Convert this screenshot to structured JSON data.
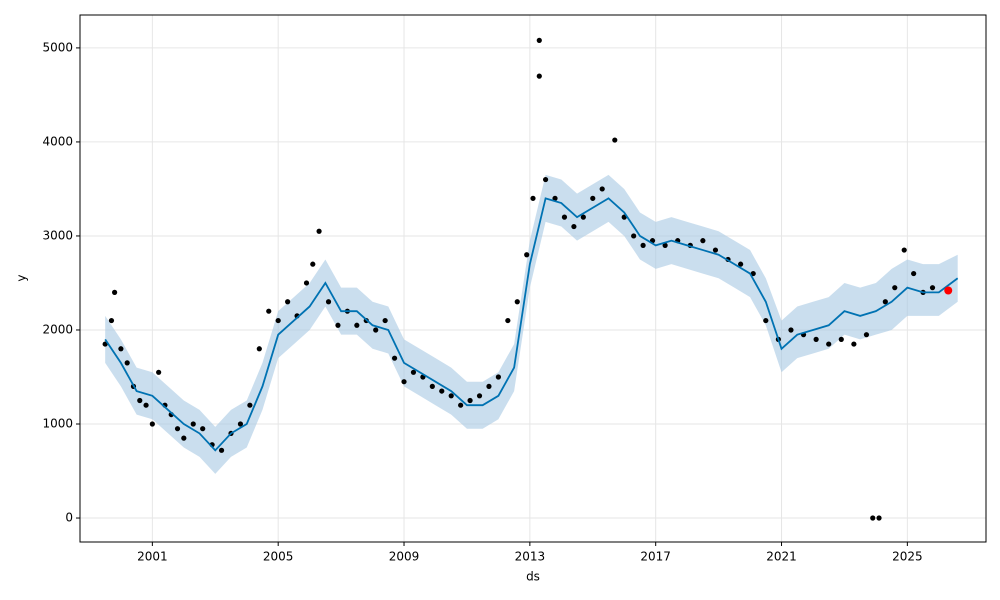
{
  "chart_data": {
    "type": "forecast",
    "xlabel": "ds",
    "ylabel": "y",
    "xlim": [
      1998.7,
      2027.5
    ],
    "xticks": [
      2001,
      2005,
      2009,
      2013,
      2017,
      2021,
      2025
    ],
    "ylim": [
      -255,
      5350
    ],
    "yticks": [
      0,
      1000,
      2000,
      3000,
      4000,
      5000
    ],
    "grid": true,
    "forecast": {
      "color": "#0072b2",
      "band_color": "#a6c8e2",
      "x": [
        1999.5,
        2000.0,
        2000.5,
        2001.0,
        2001.5,
        2002.0,
        2002.5,
        2003.0,
        2003.5,
        2004.0,
        2004.5,
        2005.0,
        2005.5,
        2006.0,
        2006.5,
        2007.0,
        2007.5,
        2008.0,
        2008.5,
        2009.0,
        2009.5,
        2010.0,
        2010.5,
        2011.0,
        2011.5,
        2012.0,
        2012.5,
        2013.0,
        2013.5,
        2014.0,
        2014.5,
        2015.0,
        2015.5,
        2016.0,
        2016.5,
        2017.0,
        2017.5,
        2018.0,
        2018.5,
        2019.0,
        2019.5,
        2020.0,
        2020.5,
        2021.0,
        2021.5,
        2022.0,
        2022.5,
        2023.0,
        2023.5,
        2024.0,
        2024.5,
        2025.0,
        2025.5,
        2026.0,
        2026.6
      ],
      "values": [
        1900,
        1650,
        1350,
        1300,
        1150,
        1000,
        900,
        720,
        900,
        1000,
        1400,
        1950,
        2100,
        2250,
        2500,
        2200,
        2200,
        2050,
        2000,
        1650,
        1550,
        1450,
        1350,
        1200,
        1200,
        1300,
        1600,
        2700,
        3400,
        3350,
        3200,
        3300,
        3400,
        3250,
        3000,
        2900,
        2950,
        2900,
        2850,
        2800,
        2700,
        2600,
        2300,
        1800,
        1950,
        2000,
        2050,
        2200,
        2150,
        2200,
        2300,
        2450,
        2400,
        2400,
        2550
      ],
      "lower": [
        1650,
        1400,
        1100,
        1050,
        900,
        750,
        650,
        470,
        650,
        750,
        1150,
        1700,
        1850,
        2000,
        2250,
        1950,
        1950,
        1800,
        1750,
        1400,
        1300,
        1200,
        1100,
        950,
        950,
        1050,
        1350,
        2450,
        3150,
        3100,
        2950,
        3050,
        3150,
        3000,
        2750,
        2650,
        2700,
        2650,
        2600,
        2550,
        2450,
        2350,
        2050,
        1550,
        1700,
        1750,
        1800,
        1950,
        1900,
        1950,
        2000,
        2150,
        2150,
        2150,
        2300
      ],
      "upper": [
        2150,
        1900,
        1600,
        1550,
        1400,
        1250,
        1150,
        970,
        1150,
        1250,
        1650,
        2200,
        2350,
        2500,
        2750,
        2450,
        2450,
        2300,
        2250,
        1900,
        1800,
        1700,
        1600,
        1450,
        1450,
        1550,
        1850,
        2950,
        3650,
        3600,
        3450,
        3550,
        3650,
        3500,
        3250,
        3150,
        3200,
        3150,
        3100,
        3050,
        2950,
        2850,
        2550,
        2100,
        2250,
        2300,
        2350,
        2500,
        2450,
        2500,
        2650,
        2750,
        2700,
        2700,
        2800
      ]
    },
    "observed": {
      "color": "#000000",
      "x": [
        1999.5,
        1999.7,
        1999.8,
        2000.0,
        2000.2,
        2000.4,
        2000.6,
        2000.8,
        2001.0,
        2001.2,
        2001.4,
        2001.6,
        2001.8,
        2002.0,
        2002.3,
        2002.6,
        2002.9,
        2003.2,
        2003.5,
        2003.8,
        2004.1,
        2004.4,
        2004.7,
        2005.0,
        2005.3,
        2005.6,
        2005.9,
        2006.1,
        2006.3,
        2006.6,
        2006.9,
        2007.2,
        2007.5,
        2007.8,
        2008.1,
        2008.4,
        2008.7,
        2009.0,
        2009.3,
        2009.6,
        2009.9,
        2010.2,
        2010.5,
        2010.8,
        2011.1,
        2011.4,
        2011.7,
        2012.0,
        2012.3,
        2012.6,
        2012.9,
        2013.1,
        2013.3,
        2013.3,
        2013.5,
        2013.8,
        2014.1,
        2014.4,
        2014.7,
        2015.0,
        2015.3,
        2015.7,
        2016.0,
        2016.3,
        2016.6,
        2016.9,
        2017.3,
        2017.7,
        2018.1,
        2018.5,
        2018.9,
        2019.3,
        2019.7,
        2020.1,
        2020.5,
        2020.9,
        2021.3,
        2021.7,
        2022.1,
        2022.5,
        2022.9,
        2023.3,
        2023.7,
        2023.9,
        2024.1,
        2024.3,
        2024.6,
        2024.9,
        2025.2,
        2025.5,
        2025.8
      ],
      "values": [
        1850,
        2100,
        2400,
        1800,
        1650,
        1400,
        1250,
        1200,
        1000,
        1550,
        1200,
        1100,
        950,
        850,
        1000,
        950,
        780,
        720,
        900,
        1000,
        1200,
        1800,
        2200,
        2100,
        2300,
        2150,
        2500,
        2700,
        3050,
        2300,
        2050,
        2200,
        2050,
        2100,
        2000,
        2100,
        1700,
        1450,
        1550,
        1500,
        1400,
        1350,
        1300,
        1200,
        1250,
        1300,
        1400,
        1500,
        2100,
        2300,
        2800,
        3400,
        5080,
        4700,
        3600,
        3400,
        3200,
        3100,
        3200,
        3400,
        3500,
        4020,
        3200,
        3000,
        2900,
        2950,
        2900,
        2950,
        2900,
        2950,
        2850,
        2750,
        2700,
        2600,
        2100,
        1900,
        2000,
        1950,
        1900,
        1850,
        1900,
        1850,
        1950,
        0,
        0,
        2300,
        2450,
        2850,
        2600,
        2400,
        2450
      ]
    },
    "latest": {
      "color": "#ff0000",
      "x": [
        2026.3
      ],
      "values": [
        2420
      ]
    }
  }
}
